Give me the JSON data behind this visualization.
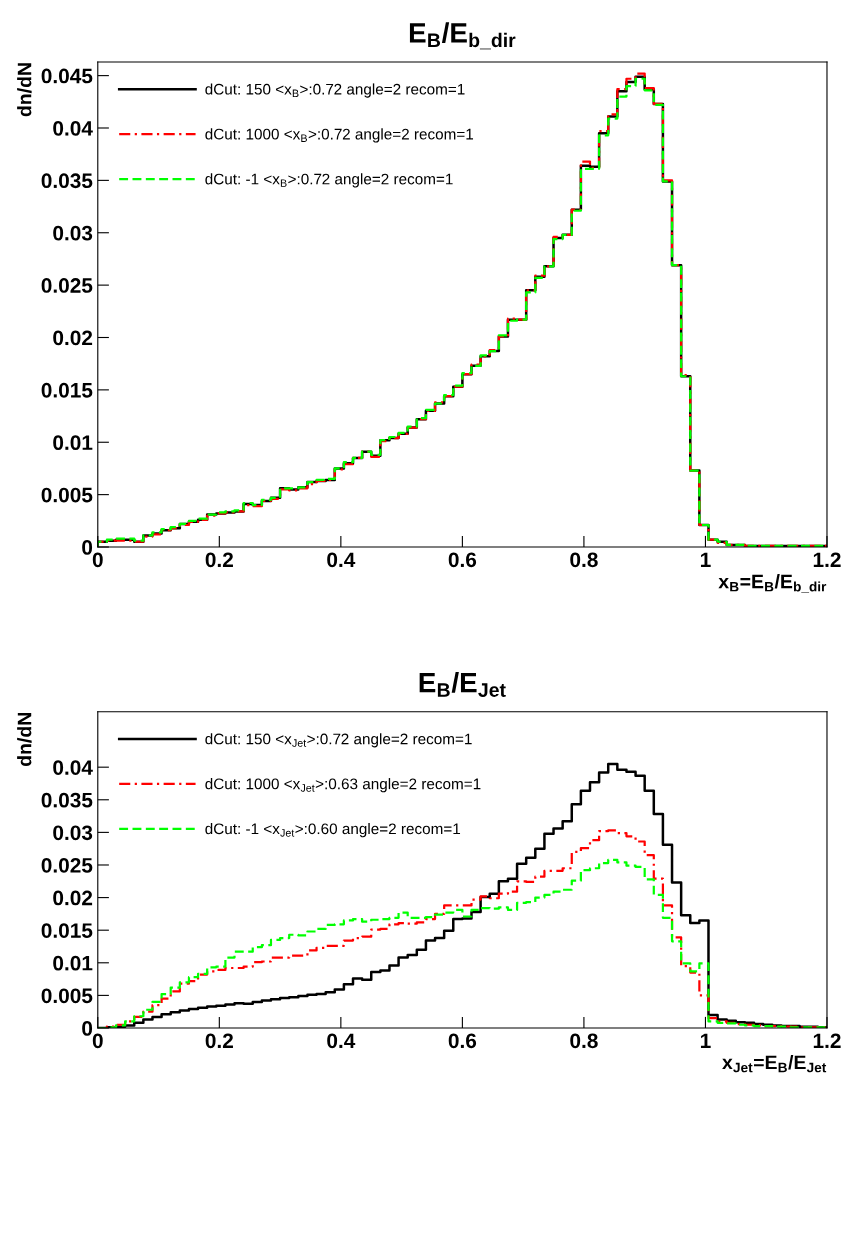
{
  "chart_data": [
    {
      "type": "histogram",
      "title": "E$_{B}$/E$_{b_dir}$",
      "xlabel": "x$_{B}$=E$_{B}$/E$_{b_dir}$",
      "ylabel": "dn/dN",
      "bins": [
        0,
        0.015,
        0.03,
        0.045,
        0.06,
        0.075,
        0.09,
        0.105,
        0.12,
        0.135,
        0.15,
        0.165,
        0.18,
        0.195,
        0.21,
        0.225,
        0.24,
        0.255,
        0.27,
        0.285,
        0.3,
        0.315,
        0.33,
        0.345,
        0.36,
        0.375,
        0.39,
        0.405,
        0.42,
        0.435,
        0.45,
        0.465,
        0.48,
        0.495,
        0.51,
        0.525,
        0.54,
        0.555,
        0.57,
        0.585,
        0.6,
        0.615,
        0.63,
        0.645,
        0.66,
        0.675,
        0.69,
        0.705,
        0.72,
        0.735,
        0.75,
        0.765,
        0.78,
        0.795,
        0.81,
        0.825,
        0.84,
        0.855,
        0.87,
        0.885,
        0.9,
        0.915,
        0.93,
        0.945,
        0.96,
        0.975,
        0.99,
        1.005,
        1.02,
        1.035,
        1.05,
        1.065,
        1.08,
        1.095,
        1.11,
        1.125,
        1.14,
        1.155,
        1.17,
        1.185,
        1.2
      ],
      "series": [
        {
          "name": "dCut: 150 <x$_{B}$>:0.72 angle=2 recom=1",
          "color": "#000000",
          "line_style": "solid",
          "values": [
            0.0005,
            0.0006,
            0.0007,
            0.0007,
            0.0005,
            0.0011,
            0.0013,
            0.0016,
            0.0018,
            0.0022,
            0.0024,
            0.0026,
            0.0031,
            0.0032,
            0.0033,
            0.0034,
            0.0041,
            0.004,
            0.0044,
            0.0047,
            0.0056,
            0.0055,
            0.0057,
            0.0062,
            0.0063,
            0.0064,
            0.0075,
            0.008,
            0.0085,
            0.0091,
            0.0087,
            0.0102,
            0.0104,
            0.0108,
            0.0114,
            0.0122,
            0.013,
            0.0137,
            0.0144,
            0.0153,
            0.0165,
            0.0173,
            0.0182,
            0.0187,
            0.0201,
            0.0217,
            0.0217,
            0.0245,
            0.0258,
            0.0268,
            0.0295,
            0.0298,
            0.0322,
            0.0364,
            0.0363,
            0.0395,
            0.0411,
            0.0435,
            0.0444,
            0.0449,
            0.0437,
            0.0423,
            0.0349,
            0.0269,
            0.0163,
            0.0073,
            0.0021,
            0.0007,
            0.0005,
            0.0002,
            0.0002,
            0.0001,
            0.0001,
            0.0001,
            0.0001,
            0.0001,
            0.0001,
            0.0001,
            0.0001,
            0.0001
          ]
        },
        {
          "name": "dCut: 1000 <x$_{B}$>:0.72 angle=2 recom=1",
          "color": "#ff0000",
          "line_style": "dashdot",
          "values": [
            0.0005,
            0.0006,
            0.0006,
            0.0006,
            0.0005,
            0.001,
            0.0012,
            0.0016,
            0.0018,
            0.0021,
            0.0024,
            0.0026,
            0.003,
            0.0032,
            0.0033,
            0.0034,
            0.004,
            0.0039,
            0.0044,
            0.0046,
            0.0055,
            0.0054,
            0.0056,
            0.006,
            0.0063,
            0.0064,
            0.0074,
            0.0079,
            0.0085,
            0.0091,
            0.0086,
            0.0101,
            0.0104,
            0.0108,
            0.0114,
            0.0122,
            0.013,
            0.0138,
            0.0144,
            0.0153,
            0.0165,
            0.0174,
            0.0182,
            0.0188,
            0.0201,
            0.0218,
            0.0217,
            0.0245,
            0.0259,
            0.0268,
            0.0296,
            0.0298,
            0.0322,
            0.0368,
            0.0362,
            0.0397,
            0.0413,
            0.0437,
            0.0447,
            0.0452,
            0.0438,
            0.0423,
            0.035,
            0.0269,
            0.0164,
            0.0073,
            0.0021,
            0.0007,
            0.0004,
            0.0002,
            0.0002,
            0.0001,
            0.0001,
            0.0001,
            0.0001,
            0.0001,
            0.0001,
            0.0001,
            0.0001,
            0.0001
          ]
        },
        {
          "name": "dCut: -1 <x$_{B}$>:0.72 angle=2 recom=1",
          "color": "#00ff00",
          "line_style": "dashed",
          "values": [
            0.0005,
            0.0007,
            0.0008,
            0.0008,
            0.0006,
            0.0011,
            0.0014,
            0.0017,
            0.0019,
            0.0022,
            0.0025,
            0.0027,
            0.0031,
            0.0033,
            0.0034,
            0.0035,
            0.0042,
            0.004,
            0.0045,
            0.0047,
            0.0056,
            0.0056,
            0.0057,
            0.0062,
            0.0064,
            0.0065,
            0.0075,
            0.0081,
            0.0085,
            0.0091,
            0.0088,
            0.0102,
            0.0105,
            0.0109,
            0.0115,
            0.0123,
            0.0131,
            0.0137,
            0.0145,
            0.0154,
            0.0166,
            0.0173,
            0.0183,
            0.0187,
            0.0202,
            0.0216,
            0.0217,
            0.0243,
            0.0257,
            0.0268,
            0.0294,
            0.0298,
            0.0321,
            0.0361,
            0.0361,
            0.0393,
            0.0409,
            0.043,
            0.044,
            0.0447,
            0.0436,
            0.0422,
            0.0349,
            0.0269,
            0.0163,
            0.0073,
            0.0021,
            0.0007,
            0.0005,
            0.0002,
            0.0002,
            0.0001,
            0.0001,
            0.0001,
            0.0001,
            0.0001,
            0.0001,
            0.0001,
            0.0001,
            0.0001
          ]
        }
      ],
      "xlim": [
        0,
        1.2
      ],
      "ylim": [
        0,
        0.0463
      ],
      "xticks": [
        0,
        0.2,
        0.4,
        0.6,
        0.8,
        1,
        1.2
      ],
      "yticks": [
        0,
        0.005,
        0.01,
        0.015,
        0.02,
        0.025,
        0.03,
        0.035,
        0.04,
        0.045
      ],
      "legend": "top left",
      "grid": false
    },
    {
      "type": "histogram",
      "title": "E$_{B}$/E$_{Jet}$",
      "xlabel": "x$_{Jet}$=E$_{B}$/E$_{Jet}$",
      "ylabel": "dn/dN",
      "bins": [
        0,
        0.015,
        0.03,
        0.045,
        0.06,
        0.075,
        0.09,
        0.105,
        0.12,
        0.135,
        0.15,
        0.165,
        0.18,
        0.195,
        0.21,
        0.225,
        0.24,
        0.255,
        0.27,
        0.285,
        0.3,
        0.315,
        0.33,
        0.345,
        0.36,
        0.375,
        0.39,
        0.405,
        0.42,
        0.435,
        0.45,
        0.465,
        0.48,
        0.495,
        0.51,
        0.525,
        0.54,
        0.555,
        0.57,
        0.585,
        0.6,
        0.615,
        0.63,
        0.645,
        0.66,
        0.675,
        0.69,
        0.705,
        0.72,
        0.735,
        0.75,
        0.765,
        0.78,
        0.795,
        0.81,
        0.825,
        0.84,
        0.855,
        0.87,
        0.885,
        0.9,
        0.915,
        0.93,
        0.945,
        0.96,
        0.975,
        0.99,
        1.005,
        1.02,
        1.035,
        1.05,
        1.065,
        1.08,
        1.095,
        1.11,
        1.125,
        1.14,
        1.155,
        1.17,
        1.185,
        1.2
      ],
      "series": [
        {
          "name": "dCut: 150 <x$_{Jet}$>:0.72 angle=2 recom=1",
          "color": "#000000",
          "line_style": "solid",
          "values": [
            0.0,
            0.0001,
            0.0002,
            0.0004,
            0.0008,
            0.0013,
            0.0017,
            0.0021,
            0.0024,
            0.0027,
            0.0029,
            0.0031,
            0.0033,
            0.0034,
            0.0036,
            0.0038,
            0.0037,
            0.004,
            0.0042,
            0.0044,
            0.0046,
            0.0047,
            0.0049,
            0.0051,
            0.0052,
            0.0055,
            0.0059,
            0.0067,
            0.0076,
            0.0074,
            0.0086,
            0.0088,
            0.0096,
            0.0108,
            0.0112,
            0.012,
            0.0134,
            0.0138,
            0.0149,
            0.0167,
            0.0168,
            0.0178,
            0.0201,
            0.0206,
            0.0225,
            0.0229,
            0.0252,
            0.0261,
            0.0275,
            0.0298,
            0.0306,
            0.0317,
            0.0343,
            0.0364,
            0.0377,
            0.0392,
            0.0405,
            0.0396,
            0.0393,
            0.0387,
            0.0364,
            0.0328,
            0.0281,
            0.0223,
            0.0173,
            0.0161,
            0.0165,
            0.002,
            0.0013,
            0.0011,
            0.0009,
            0.0008,
            0.0006,
            0.0005,
            0.0004,
            0.0003,
            0.0003,
            0.0002,
            0.0002,
            0.0001
          ]
        },
        {
          "name": "dCut: 1000 <x$_{Jet}$>:0.63 angle=2 recom=1",
          "color": "#ff0000",
          "line_style": "dashdot",
          "values": [
            0.0,
            0.0002,
            0.0005,
            0.001,
            0.0017,
            0.0025,
            0.0035,
            0.0045,
            0.0056,
            0.0068,
            0.0072,
            0.0082,
            0.0087,
            0.0089,
            0.0092,
            0.0092,
            0.0094,
            0.0101,
            0.0102,
            0.0108,
            0.0108,
            0.0111,
            0.0111,
            0.0119,
            0.0123,
            0.0126,
            0.0126,
            0.0134,
            0.0138,
            0.014,
            0.0151,
            0.0152,
            0.0159,
            0.0161,
            0.016,
            0.0162,
            0.0167,
            0.0175,
            0.0188,
            0.0188,
            0.0188,
            0.0197,
            0.0202,
            0.0199,
            0.0206,
            0.0209,
            0.0225,
            0.0224,
            0.0232,
            0.0241,
            0.0241,
            0.0245,
            0.027,
            0.0276,
            0.0288,
            0.0302,
            0.0303,
            0.0299,
            0.0294,
            0.0286,
            0.0265,
            0.0229,
            0.0188,
            0.0139,
            0.0095,
            0.0085,
            0.005,
            0.0015,
            0.001,
            0.0008,
            0.0006,
            0.0005,
            0.0004,
            0.0003,
            0.0003,
            0.0002,
            0.0002,
            0.0001,
            0.0001,
            0.0001
          ]
        },
        {
          "name": "dCut: -1 <x$_{Jet}$>:0.60 angle=2 recom=1",
          "color": "#00ff00",
          "line_style": "dashed",
          "values": [
            0.0,
            0.0001,
            0.0004,
            0.001,
            0.0018,
            0.0028,
            0.004,
            0.0052,
            0.0062,
            0.007,
            0.0078,
            0.0083,
            0.0093,
            0.0094,
            0.0108,
            0.0117,
            0.0117,
            0.0124,
            0.0127,
            0.0135,
            0.0138,
            0.0143,
            0.0142,
            0.0148,
            0.0152,
            0.0158,
            0.0159,
            0.0165,
            0.0167,
            0.0163,
            0.0166,
            0.0167,
            0.0169,
            0.0177,
            0.0169,
            0.0169,
            0.017,
            0.0174,
            0.0177,
            0.0181,
            0.0171,
            0.0181,
            0.0184,
            0.0183,
            0.0185,
            0.0181,
            0.0192,
            0.0193,
            0.02,
            0.0204,
            0.0209,
            0.0212,
            0.0226,
            0.0242,
            0.0245,
            0.0253,
            0.0258,
            0.0254,
            0.0249,
            0.0247,
            0.0228,
            0.0204,
            0.0169,
            0.0133,
            0.0099,
            0.0087,
            0.0099,
            0.001,
            0.0008,
            0.0007,
            0.0005,
            0.0004,
            0.0003,
            0.0003,
            0.0002,
            0.0002,
            0.0001,
            0.0001,
            0.0001,
            0.0001
          ]
        }
      ],
      "xlim": [
        0,
        1.2
      ],
      "ylim": [
        0,
        0.0485
      ],
      "xticks": [
        0,
        0.2,
        0.4,
        0.6,
        0.8,
        1,
        1.2
      ],
      "yticks": [
        0,
        0.005,
        0.01,
        0.015,
        0.02,
        0.025,
        0.03,
        0.035,
        0.04
      ],
      "legend": "top left",
      "grid": false
    }
  ]
}
